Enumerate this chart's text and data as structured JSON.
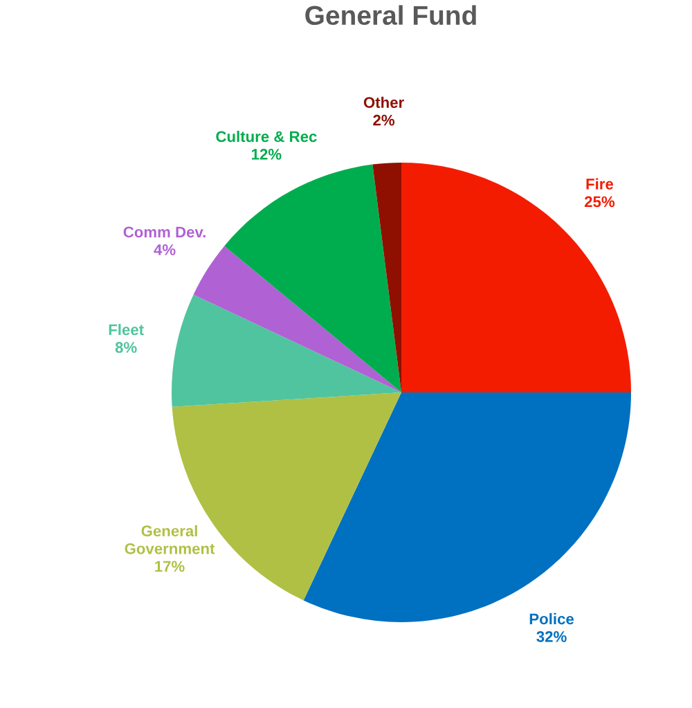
{
  "chart_data": {
    "type": "pie",
    "title": "General Fund",
    "categories": [
      "Fire",
      "Police",
      "General Government",
      "Fleet",
      "Comm Dev.",
      "Culture & Rec",
      "Other"
    ],
    "values": [
      25,
      32,
      17,
      8,
      4,
      12,
      2
    ],
    "value_labels": [
      "25%",
      "32%",
      "17%",
      "8%",
      "4%",
      "12%",
      "2%"
    ],
    "colors": [
      "#f41c00",
      "#0070c0",
      "#b0c044",
      "#50c49f",
      "#b061d4",
      "#00ad4e",
      "#8f1000"
    ],
    "legend": false
  }
}
